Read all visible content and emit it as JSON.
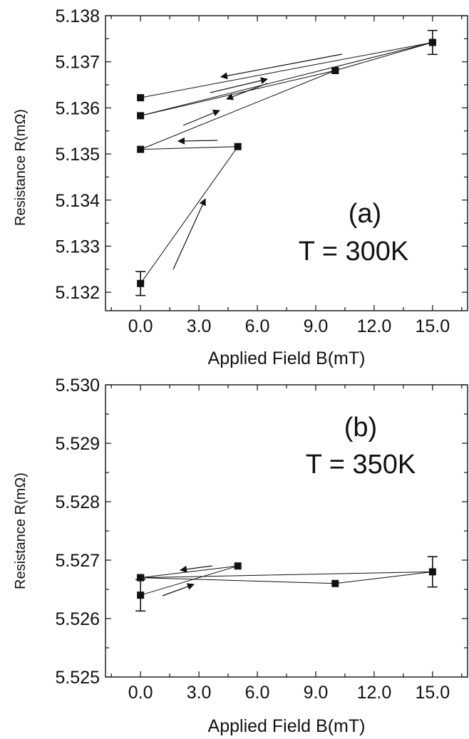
{
  "chart_data": [
    {
      "type": "line",
      "panel_label": "(a)",
      "annotation": "T = 300K",
      "xlabel": "Applied Field B(mT)",
      "ylabel": "Resistance R(mΩ)",
      "xlim": [
        -1.8,
        16.8
      ],
      "ylim": [
        5.1316,
        5.138
      ],
      "xticks": [
        "0.0",
        "3.0",
        "6.0",
        "9.0",
        "12.0",
        "15.0"
      ],
      "yticks": [
        "5.132",
        "5.133",
        "5.134",
        "5.135",
        "5.136",
        "5.137",
        "5.138"
      ],
      "grid": false,
      "series": [
        {
          "x": [
            0,
            5,
            0,
            10,
            15,
            10,
            0,
            15,
            0
          ],
          "y": [
            5.13219,
            5.13516,
            5.1351,
            5.13681,
            5.13742,
            5.13681,
            5.13583,
            5.13742,
            5.13622
          ],
          "yerr": [
            0.00026,
            0,
            0,
            0,
            0.00026,
            0,
            0,
            0,
            0
          ]
        }
      ]
    },
    {
      "type": "line",
      "panel_label": "(b)",
      "annotation": "T = 350K",
      "xlabel": "Applied Field B(mT)",
      "ylabel": "Resistance R(mΩ)",
      "xlim": [
        -1.8,
        16.8
      ],
      "ylim": [
        5.525,
        5.53
      ],
      "xticks": [
        "0.0",
        "3.0",
        "6.0",
        "9.0",
        "12.0",
        "15.0"
      ],
      "yticks": [
        "5.525",
        "5.526",
        "5.527",
        "5.528",
        "5.529",
        "5.530"
      ],
      "grid": false,
      "series": [
        {
          "x": [
            0,
            5,
            0,
            10,
            15,
            0
          ],
          "y": [
            5.5264,
            5.5269,
            5.5267,
            5.5266,
            5.5268,
            5.5267
          ],
          "yerr": [
            0.00027,
            0,
            0,
            0,
            0.00026,
            0
          ]
        }
      ]
    }
  ]
}
